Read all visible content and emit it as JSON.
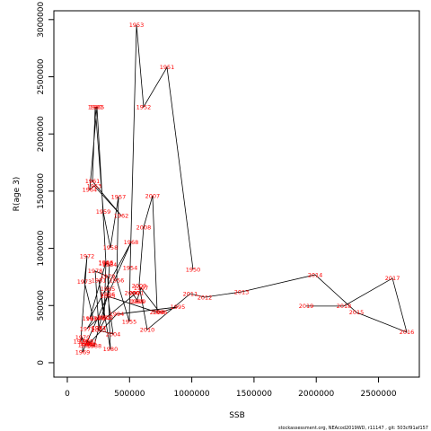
{
  "chart_data": {
    "type": "connected-scatter",
    "xlabel": "SSB",
    "ylabel": "R(age 3)",
    "footer": "stockassessment.org, NEAcod2019WD, r11147 , git: 503cf91af157",
    "point_labels": [
      "1950",
      "1951",
      "1952",
      "1953",
      "1954",
      "1955",
      "1956",
      "1957",
      "1958",
      "1959",
      "1960",
      "1961",
      "1962",
      "1963",
      "1964",
      "1965",
      "1966",
      "1967",
      "1968",
      "1969",
      "1970",
      "1971",
      "1972",
      "1973",
      "1974",
      "1975",
      "1976",
      "1977",
      "1978",
      "1979",
      "1980",
      "1981",
      "1982",
      "1983",
      "1984",
      "1985",
      "1986",
      "1987",
      "1988",
      "1989",
      "1990",
      "1991",
      "1992",
      "1993",
      "1994",
      "1995",
      "1996",
      "1997",
      "1998",
      "1999",
      "2000",
      "2001",
      "2002",
      "2003",
      "2004",
      "2005",
      "2006",
      "2007",
      "2008",
      "2009",
      "2010",
      "2011",
      "2012",
      "2013",
      "2014",
      "2015",
      "2016",
      "2017",
      "2018",
      "2019"
    ],
    "x": [
      1010000,
      801000,
      613000,
      556000,
      505000,
      498000,
      397000,
      411000,
      346000,
      289000,
      224000,
      202000,
      433000,
      216000,
      180000,
      238000,
      310000,
      180000,
      512000,
      123000,
      123000,
      108000,
      159000,
      137000,
      209000,
      159000,
      245000,
      253000,
      224000,
      325000,
      346000,
      253000,
      296000,
      310000,
      339000,
      325000,
      325000,
      253000,
      216000,
      159000,
      144000,
      180000,
      152000,
      166000,
      397000,
      887000,
      743000,
      592000,
      556000,
      570000,
      519000,
      556000,
      310000,
      253000,
      368000,
      325000,
      722000,
      685000,
      613000,
      577000,
      642000,
      988000,
      1104000,
      1400000,
      1991000,
      2323000,
      2727000,
      2612000,
      2222000,
      1919000
    ],
    "values": [
      816000,
      2583000,
      2237000,
      2952000,
      832000,
      361000,
      722000,
      1452000,
      1005000,
      1319000,
      2237000,
      1586000,
      1287000,
      1546000,
      1515000,
      2237000,
      879000,
      385000,
      1052000,
      94000,
      220000,
      188000,
      934000,
      707000,
      385000,
      298000,
      385000,
      306000,
      801000,
      754000,
      118000,
      722000,
      393000,
      871000,
      856000,
      644000,
      597000,
      306000,
      149000,
      165000,
      157000,
      181000,
      188000,
      157000,
      424000,
      487000,
      440000,
      652000,
      534000,
      534000,
      612000,
      612000,
      393000,
      283000,
      251000,
      581000,
      440000,
      1460000,
      1185000,
      675000,
      290000,
      604000,
      573000,
      620000,
      769000,
      440000,
      267000,
      738000,
      495000,
      495000
    ],
    "line_color": "#000000",
    "label_color": "#ff0000",
    "xlim": [
      -108000,
      2828000
    ],
    "ylim": [
      -126000,
      3077000
    ],
    "xticks": [
      0,
      500000,
      1000000,
      1500000,
      2000000,
      2500000
    ],
    "yticks": [
      0,
      500000,
      1000000,
      1500000,
      2000000,
      2500000,
      3000000
    ]
  }
}
